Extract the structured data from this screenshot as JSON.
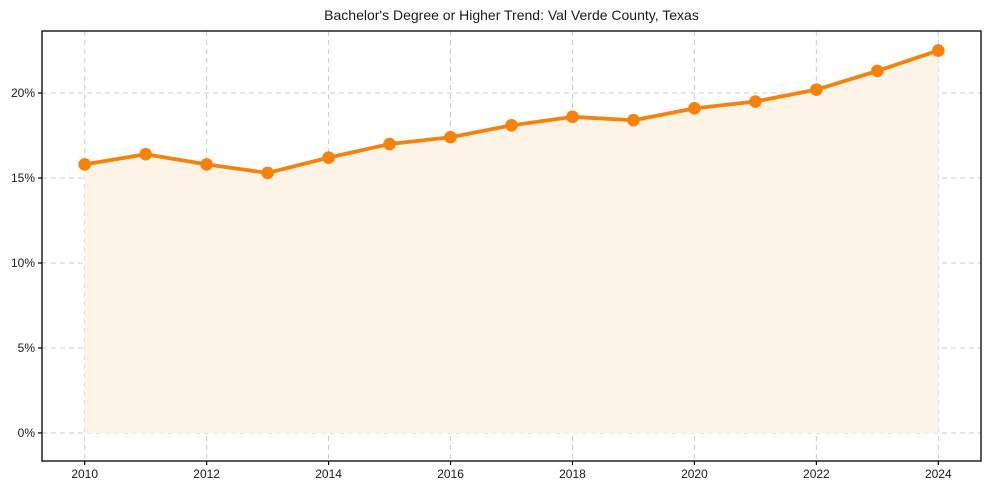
{
  "page": {
    "background": "#ffffff"
  },
  "chart_data": {
    "type": "line",
    "title": "Bachelor's Degree or Higher Trend: Val Verde County, Texas",
    "series_name": "Bachelor's Degree or Higher",
    "x": [
      2010,
      2011,
      2012,
      2013,
      2014,
      2015,
      2016,
      2017,
      2018,
      2019,
      2020,
      2021,
      2022,
      2023,
      2024
    ],
    "values": [
      15.8,
      16.4,
      15.8,
      15.3,
      16.2,
      17.0,
      17.4,
      18.1,
      18.6,
      18.4,
      19.1,
      19.5,
      20.2,
      21.3,
      22.5
    ],
    "xlabel": "",
    "ylabel": "",
    "xlim": [
      2009.3,
      2024.7
    ],
    "ylim": [
      -1.65,
      23.65
    ],
    "xticks": [
      {
        "v": 2010,
        "label": "2010"
      },
      {
        "v": 2012,
        "label": "2012"
      },
      {
        "v": 2014,
        "label": "2014"
      },
      {
        "v": 2016,
        "label": "2016"
      },
      {
        "v": 2018,
        "label": "2018"
      },
      {
        "v": 2020,
        "label": "2020"
      },
      {
        "v": 2022,
        "label": "2022"
      },
      {
        "v": 2024,
        "label": "2024"
      }
    ],
    "yticks": [
      {
        "v": 0,
        "label": "0%"
      },
      {
        "v": 5,
        "label": "5%"
      },
      {
        "v": 10,
        "label": "10%"
      },
      {
        "v": 15,
        "label": "15%"
      },
      {
        "v": 20,
        "label": "20%"
      }
    ],
    "grid": true,
    "grid_style": "dashed",
    "legend": "none",
    "marker": "circle",
    "fill_to_zero": true,
    "colors": {
      "line": "#f5820d",
      "marker": "#f5820d",
      "area_fill": "#fdf3e6",
      "grid": "#cccccc",
      "spine": "#000000",
      "tick_label": "#1a1a1a",
      "title": "#1a1a1a"
    }
  }
}
